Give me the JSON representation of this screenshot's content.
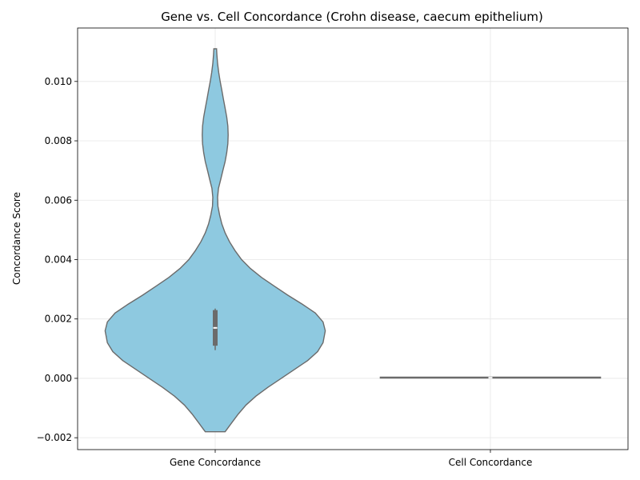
{
  "chart_data": {
    "type": "violin",
    "title": "Gene vs. Cell Concordance (Crohn disease, caecum epithelium)",
    "xlabel": "",
    "ylabel": "Concordance Score",
    "categories": [
      "Gene Concordance",
      "Cell Concordance"
    ],
    "ylim": [
      -0.0024,
      0.0118
    ],
    "yticks": [
      -0.002,
      0.0,
      0.002,
      0.004,
      0.006,
      0.008,
      0.01
    ],
    "ytick_labels": [
      "−0.002",
      "0.000",
      "0.002",
      "0.004",
      "0.006",
      "0.008",
      "0.010"
    ],
    "grid": true,
    "fill_color": "#8ec9e0",
    "edge_color": "#6b6b6b",
    "violins": [
      {
        "category": "Gene Concordance",
        "min": -0.0018,
        "max": 0.0111,
        "q1": 0.0011,
        "median": 0.0017,
        "q3": 0.0023,
        "whisker_low": 0.00095,
        "whisker_high": 0.00235,
        "density_profile": [
          [
            -0.0018,
            0.09
          ],
          [
            -0.0015,
            0.15
          ],
          [
            -0.0012,
            0.21
          ],
          [
            -0.0009,
            0.28
          ],
          [
            -0.0006,
            0.37
          ],
          [
            -0.0003,
            0.48
          ],
          [
            0.0,
            0.6
          ],
          [
            0.0003,
            0.72
          ],
          [
            0.0006,
            0.84
          ],
          [
            0.0009,
            0.93
          ],
          [
            0.0012,
            0.98
          ],
          [
            0.0016,
            1.0
          ],
          [
            0.0019,
            0.98
          ],
          [
            0.0022,
            0.91
          ],
          [
            0.0025,
            0.79
          ],
          [
            0.0028,
            0.66
          ],
          [
            0.0031,
            0.54
          ],
          [
            0.0034,
            0.42
          ],
          [
            0.0037,
            0.32
          ],
          [
            0.004,
            0.24
          ],
          [
            0.0043,
            0.18
          ],
          [
            0.0046,
            0.13
          ],
          [
            0.0049,
            0.09
          ],
          [
            0.0052,
            0.06
          ],
          [
            0.0055,
            0.04
          ],
          [
            0.0058,
            0.025
          ],
          [
            0.0061,
            0.022
          ],
          [
            0.0064,
            0.03
          ],
          [
            0.0067,
            0.05
          ],
          [
            0.007,
            0.07
          ],
          [
            0.0073,
            0.09
          ],
          [
            0.0076,
            0.105
          ],
          [
            0.0079,
            0.115
          ],
          [
            0.0082,
            0.118
          ],
          [
            0.0085,
            0.115
          ],
          [
            0.0088,
            0.105
          ],
          [
            0.0091,
            0.09
          ],
          [
            0.0094,
            0.075
          ],
          [
            0.0097,
            0.06
          ],
          [
            0.01,
            0.045
          ],
          [
            0.0103,
            0.032
          ],
          [
            0.0106,
            0.022
          ],
          [
            0.0109,
            0.015
          ],
          [
            0.0111,
            0.012
          ]
        ]
      },
      {
        "category": "Cell Concordance",
        "min": 0.0,
        "max": 5e-05,
        "q1": 1e-05,
        "median": 2e-05,
        "q3": 4e-05,
        "whisker_low": 0.0,
        "whisker_high": 5e-05,
        "density_profile": [
          [
            0.0,
            1.0
          ],
          [
            5e-05,
            1.0
          ]
        ]
      }
    ]
  }
}
